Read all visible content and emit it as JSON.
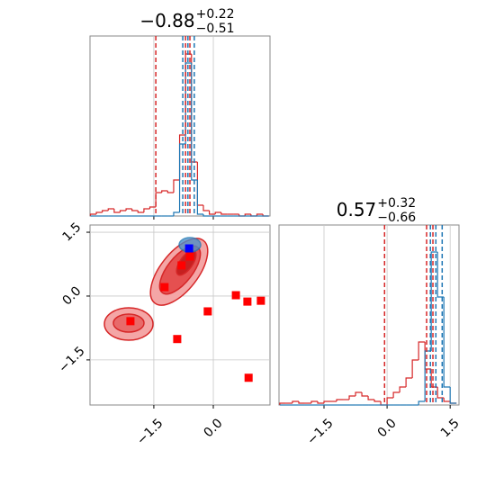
{
  "chart_data": [
    {
      "type": "histogram",
      "title": {
        "main": "−0.88",
        "upper": "+0.22",
        "lower": "−0.51"
      },
      "xlim": [
        -3.11,
        1.43
      ],
      "ylim": [
        0,
        1
      ],
      "xticks": [
        -1.5,
        0
      ],
      "grid": true,
      "bins": [
        -3.1,
        -2.95,
        -2.8,
        -2.65,
        -2.5,
        -2.35,
        -2.2,
        -2.05,
        -1.9,
        -1.75,
        -1.6,
        -1.45,
        -1.3,
        -1.15,
        -1.0,
        -0.85,
        -0.7,
        -0.55,
        -0.4,
        -0.25,
        -0.1,
        0.05,
        0.2,
        0.35,
        0.5,
        0.65,
        0.8,
        0.95,
        1.1,
        1.25,
        1.4
      ],
      "series": [
        {
          "color": "#d62728",
          "values": [
            0.01,
            0.02,
            0.03,
            0.04,
            0.02,
            0.03,
            0.04,
            0.03,
            0.02,
            0.04,
            0.05,
            0.13,
            0.14,
            0.13,
            0.2,
            0.45,
            0.9,
            0.3,
            0.06,
            0.03,
            0.01,
            0.02,
            0.01,
            0.01,
            0.01,
            0,
            0.01,
            0,
            0.01,
            0
          ]
        },
        {
          "color": "#1f77b4",
          "values": [
            0,
            0,
            0,
            0,
            0,
            0,
            0,
            0,
            0,
            0,
            0,
            0,
            0,
            0,
            0.02,
            0.4,
            0.85,
            0.2,
            0.01,
            0,
            0,
            0,
            0,
            0,
            0,
            0,
            0,
            0,
            0,
            0
          ]
        }
      ],
      "quantile_lines": [
        {
          "color": "#d62728",
          "values": [
            -1.45,
            -0.7,
            -0.59
          ]
        },
        {
          "color": "#1f77b4",
          "values": [
            -0.77,
            -0.64,
            -0.48
          ]
        }
      ]
    },
    {
      "type": "scatter",
      "xlim": [
        -3.11,
        1.43
      ],
      "ylim": [
        -2.56,
        1.67
      ],
      "grid": true,
      "xticks": [
        {
          "value": -1.5,
          "label": "−1.5"
        },
        {
          "value": 0,
          "label": "0.0"
        }
      ],
      "yticks": [
        1.5,
        {
          "value": 0,
          "label": "0.0"
        },
        {
          "value": -1.5,
          "label": "−1.5"
        }
      ],
      "series": [
        {
          "color": "#ff0000",
          "x": [
            -2.09,
            -1.23,
            -0.91,
            -0.8,
            -0.59,
            -0.14,
            0.57,
            0.86,
            1.2,
            0.89
          ],
          "y": [
            -0.59,
            0.21,
            -1.01,
            0.72,
            0.93,
            -0.36,
            0.02,
            -0.13,
            -0.11,
            -1.92
          ]
        },
        {
          "color": "#0000ff",
          "x": [
            -0.61
          ],
          "y": [
            1.12
          ]
        }
      ]
    },
    {
      "type": "histogram",
      "title": {
        "main": "0.57",
        "upper": "+0.32",
        "lower": "−0.66"
      },
      "xlim": [
        -2.57,
        1.71
      ],
      "ylim": [
        0,
        1
      ],
      "grid": true,
      "xticks": [
        {
          "value": -1.5,
          "label": "−1.5"
        },
        {
          "value": 0,
          "label": "0.0"
        },
        1.5
      ],
      "bins": [
        -2.55,
        -2.4,
        -2.25,
        -2.1,
        -1.95,
        -1.8,
        -1.65,
        -1.5,
        -1.35,
        -1.2,
        -1.05,
        -0.9,
        -0.75,
        -0.6,
        -0.45,
        -0.3,
        -0.15,
        0,
        0.15,
        0.3,
        0.45,
        0.6,
        0.75,
        0.9,
        1.05,
        1.2,
        1.35,
        1.5,
        1.65
      ],
      "series": [
        {
          "color": "#d62728",
          "values": [
            0.01,
            0.01,
            0.02,
            0.01,
            0.01,
            0.02,
            0.01,
            0.02,
            0.02,
            0.03,
            0.03,
            0.05,
            0.07,
            0.05,
            0.03,
            0.02,
            0,
            0.04,
            0.07,
            0.1,
            0.15,
            0.25,
            0.35,
            0.2,
            0.1,
            0.04,
            0.02,
            0.01
          ]
        },
        {
          "color": "#1f77b4",
          "values": [
            0,
            0,
            0,
            0,
            0,
            0,
            0,
            0,
            0,
            0,
            0,
            0,
            0,
            0,
            0,
            0,
            0,
            0,
            0,
            0,
            0,
            0,
            0.02,
            0.3,
            0.85,
            0.6,
            0.1,
            0.01
          ]
        }
      ],
      "quantile_lines": [
        {
          "color": "#d62728",
          "values": [
            -0.06,
            0.94,
            1.09
          ]
        },
        {
          "color": "#1f77b4",
          "values": [
            1.03,
            1.16,
            1.31
          ]
        }
      ]
    }
  ]
}
